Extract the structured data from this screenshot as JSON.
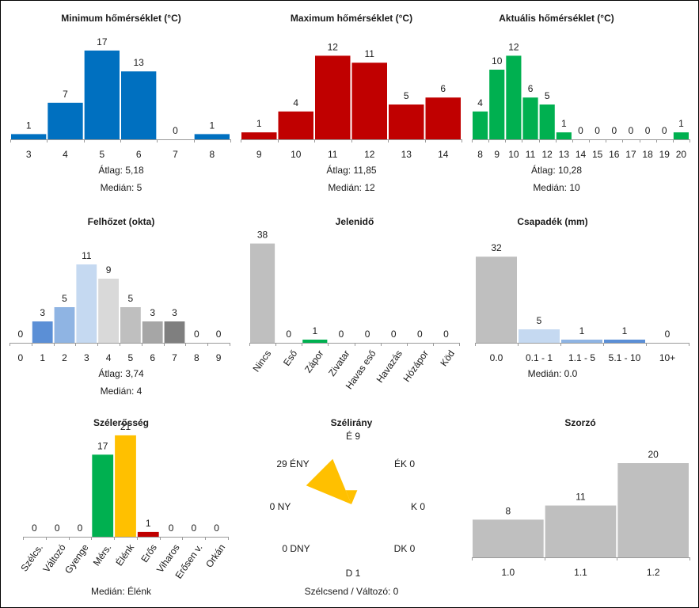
{
  "chart_data": [
    {
      "id": "min",
      "type": "bar",
      "title": "Minimum hőmérséklet (°C)",
      "categories": [
        "3",
        "4",
        "5",
        "6",
        "7",
        "8"
      ],
      "values": [
        1,
        7,
        17,
        13,
        0,
        1
      ],
      "colors": [
        "#0070c0",
        "#0070c0",
        "#0070c0",
        "#0070c0",
        "#0070c0",
        "#0070c0"
      ],
      "stats": [
        {
          "label": "Átlag:",
          "value": "5,18"
        },
        {
          "label": "Medián:",
          "value": "5"
        }
      ]
    },
    {
      "id": "max",
      "type": "bar",
      "title": "Maximum hőmérséklet (°C)",
      "categories": [
        "9",
        "10",
        "11",
        "12",
        "13",
        "14"
      ],
      "values": [
        1,
        4,
        12,
        11,
        5,
        6
      ],
      "colors": [
        "#c00000",
        "#c00000",
        "#c00000",
        "#c00000",
        "#c00000",
        "#c00000"
      ],
      "stats": [
        {
          "label": "Átlag:",
          "value": "11,85"
        },
        {
          "label": "Medián:",
          "value": "12"
        }
      ]
    },
    {
      "id": "act",
      "type": "bar",
      "title": "Aktuális hőmérséklet (°C)",
      "categories": [
        "8",
        "9",
        "10",
        "11",
        "12",
        "13",
        "14",
        "15",
        "16",
        "17",
        "18",
        "19",
        "20"
      ],
      "values": [
        4,
        10,
        12,
        6,
        5,
        1,
        0,
        0,
        0,
        0,
        0,
        0,
        1
      ],
      "colors": [
        "#00b050",
        "#00b050",
        "#00b050",
        "#00b050",
        "#00b050",
        "#00b050",
        "#00b050",
        "#00b050",
        "#00b050",
        "#00b050",
        "#00b050",
        "#00b050",
        "#00b050"
      ],
      "stats": [
        {
          "label": "Átlag:",
          "value": "10,28"
        },
        {
          "label": "Medián:",
          "value": "10"
        }
      ]
    },
    {
      "id": "cloud",
      "type": "bar",
      "title": "Felhőzet (okta)",
      "categories": [
        "0",
        "1",
        "2",
        "3",
        "4",
        "5",
        "6",
        "7",
        "8",
        "9"
      ],
      "values": [
        0,
        3,
        5,
        11,
        9,
        5,
        3,
        3,
        0,
        0
      ],
      "colors": [
        "#5b8fd6",
        "#5b8fd6",
        "#8fb4e3",
        "#c5d9f1",
        "#d9d9d9",
        "#bfbfbf",
        "#a6a6a6",
        "#7f7f7f",
        "#7f7f7f",
        "#7f7f7f"
      ],
      "stats": [
        {
          "label": "Átlag:",
          "value": "3,74"
        },
        {
          "label": "Medián:",
          "value": "4"
        }
      ]
    },
    {
      "id": "wx",
      "type": "bar",
      "title": "Jelenidő",
      "categories": [
        "Nincs",
        "Eső",
        "Zápor",
        "Zivatar",
        "Havas eső",
        "Havazás",
        "Hózápor",
        "Köd"
      ],
      "values": [
        38,
        0,
        1,
        0,
        0,
        0,
        0,
        0
      ],
      "colors": [
        "#bfbfbf",
        "#bfbfbf",
        "#00b050",
        "#bfbfbf",
        "#bfbfbf",
        "#bfbfbf",
        "#bfbfbf",
        "#bfbfbf"
      ],
      "rotated_labels": true,
      "stats": []
    },
    {
      "id": "precip",
      "type": "bar",
      "title": "Csapadék (mm)",
      "categories": [
        "0.0",
        "0.1 - 1",
        "1.1 - 5",
        "5.1 - 10",
        "10+"
      ],
      "values": [
        32,
        5,
        1,
        1,
        0
      ],
      "colors": [
        "#bfbfbf",
        "#c5d9f1",
        "#8fb4e3",
        "#5b8fd6",
        "#0070c0"
      ],
      "stats": [
        {
          "label": "Medián:",
          "value": "0.0"
        }
      ]
    },
    {
      "id": "wind",
      "type": "bar",
      "title": "Szélerősség",
      "categories": [
        "Szélcs.",
        "Változó",
        "Gyenge",
        "Mérs.",
        "Élénk",
        "Erős",
        "Viharos",
        "Erősen v.",
        "Orkán"
      ],
      "values": [
        0,
        0,
        0,
        17,
        21,
        1,
        0,
        0,
        0
      ],
      "colors": [
        "#bfbfbf",
        "#bfbfbf",
        "#bfbfbf",
        "#00b050",
        "#ffc000",
        "#c00000",
        "#c00000",
        "#c00000",
        "#c00000"
      ],
      "rotated_labels": true,
      "stats": [
        {
          "label": "Medián:",
          "value": "Élénk"
        }
      ]
    },
    {
      "id": "dir",
      "type": "rose",
      "title": "Szélirány",
      "directions": [
        {
          "label": "É",
          "value": 9,
          "angle": 0
        },
        {
          "label": "ÉK",
          "value": 0,
          "angle": 45
        },
        {
          "label": "K",
          "value": 0,
          "angle": 90
        },
        {
          "label": "DK",
          "value": 0,
          "angle": 135
        },
        {
          "label": "D",
          "value": 1,
          "angle": 180
        },
        {
          "label": "DNY",
          "value": 0,
          "angle": 225
        },
        {
          "label": "NY",
          "value": 0,
          "angle": 270
        },
        {
          "label": "ÉNY",
          "value": 29,
          "angle": 315
        }
      ],
      "color": "#ffc000",
      "calm_text": "Szélcsend / Változó: 0"
    },
    {
      "id": "mult",
      "type": "bar",
      "title": "Szorzó",
      "categories": [
        "1.0",
        "1.1",
        "1.2"
      ],
      "values": [
        8,
        11,
        20
      ],
      "colors": [
        "#bfbfbf",
        "#bfbfbf",
        "#bfbfbf"
      ],
      "stats": []
    }
  ]
}
